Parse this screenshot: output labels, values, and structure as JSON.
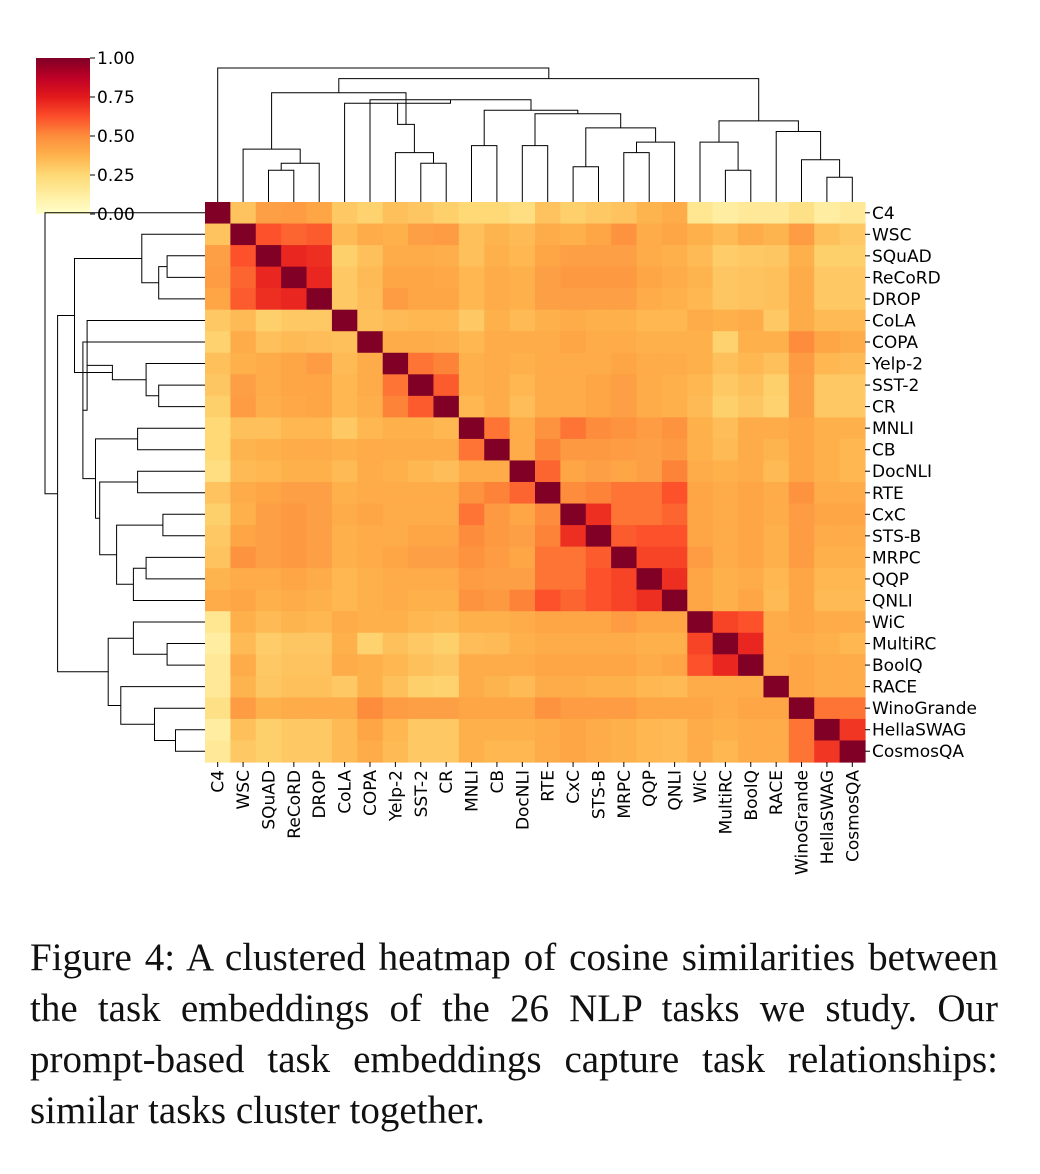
{
  "chart_data": {
    "type": "heatmap",
    "title": "",
    "tasks": [
      "C4",
      "WSC",
      "SQuAD",
      "ReCoRD",
      "DROP",
      "CoLA",
      "COPA",
      "Yelp-2",
      "SST-2",
      "CR",
      "MNLI",
      "CB",
      "DocNLI",
      "RTE",
      "CxC",
      "STS-B",
      "MRPC",
      "QQP",
      "QNLI",
      "WiC",
      "MultiRC",
      "BoolQ",
      "RACE",
      "WinoGrande",
      "HellaSWAG",
      "CosmosQA"
    ],
    "colorbar": {
      "min": 0.0,
      "max": 1.0,
      "ticks": [
        "1.00",
        "0.75",
        "0.50",
        "0.25",
        "0.00"
      ],
      "colormap": "YlOrRd"
    },
    "colormap_colors": [
      "#ffffcc",
      "#ffeda0",
      "#fed976",
      "#feb24c",
      "#fd8d3c",
      "#fc4e2a",
      "#e31a1c",
      "#bd0026",
      "#800026"
    ],
    "matrix": [
      [
        1.0,
        0.32,
        0.44,
        0.45,
        0.42,
        0.3,
        0.27,
        0.33,
        0.31,
        0.28,
        0.25,
        0.25,
        0.22,
        0.32,
        0.28,
        0.3,
        0.32,
        0.37,
        0.4,
        0.17,
        0.12,
        0.15,
        0.15,
        0.2,
        0.12,
        0.15
      ],
      [
        0.32,
        1.0,
        0.62,
        0.58,
        0.6,
        0.35,
        0.4,
        0.38,
        0.44,
        0.45,
        0.33,
        0.37,
        0.35,
        0.4,
        0.38,
        0.42,
        0.48,
        0.4,
        0.42,
        0.38,
        0.35,
        0.4,
        0.37,
        0.45,
        0.33,
        0.3
      ],
      [
        0.44,
        0.62,
        1.0,
        0.72,
        0.7,
        0.28,
        0.33,
        0.4,
        0.4,
        0.39,
        0.33,
        0.38,
        0.36,
        0.42,
        0.44,
        0.44,
        0.44,
        0.4,
        0.38,
        0.35,
        0.29,
        0.3,
        0.31,
        0.38,
        0.28,
        0.28
      ],
      [
        0.45,
        0.58,
        0.72,
        1.0,
        0.72,
        0.3,
        0.35,
        0.42,
        0.42,
        0.41,
        0.36,
        0.4,
        0.38,
        0.44,
        0.46,
        0.46,
        0.46,
        0.42,
        0.4,
        0.37,
        0.31,
        0.32,
        0.33,
        0.4,
        0.3,
        0.3
      ],
      [
        0.42,
        0.6,
        0.7,
        0.72,
        1.0,
        0.3,
        0.34,
        0.45,
        0.42,
        0.42,
        0.36,
        0.4,
        0.38,
        0.44,
        0.44,
        0.44,
        0.44,
        0.4,
        0.38,
        0.36,
        0.31,
        0.32,
        0.33,
        0.4,
        0.3,
        0.3
      ],
      [
        0.3,
        0.35,
        0.28,
        0.3,
        0.3,
        1.0,
        0.33,
        0.35,
        0.36,
        0.36,
        0.3,
        0.38,
        0.35,
        0.38,
        0.4,
        0.38,
        0.38,
        0.36,
        0.36,
        0.4,
        0.38,
        0.4,
        0.3,
        0.4,
        0.35,
        0.35
      ],
      [
        0.27,
        0.4,
        0.33,
        0.35,
        0.34,
        0.33,
        1.0,
        0.4,
        0.4,
        0.39,
        0.36,
        0.4,
        0.4,
        0.4,
        0.42,
        0.4,
        0.4,
        0.38,
        0.38,
        0.38,
        0.27,
        0.38,
        0.38,
        0.5,
        0.42,
        0.4
      ],
      [
        0.33,
        0.38,
        0.4,
        0.42,
        0.45,
        0.35,
        0.4,
        1.0,
        0.55,
        0.52,
        0.38,
        0.4,
        0.38,
        0.4,
        0.4,
        0.4,
        0.42,
        0.4,
        0.4,
        0.38,
        0.33,
        0.36,
        0.33,
        0.45,
        0.36,
        0.35
      ],
      [
        0.31,
        0.44,
        0.4,
        0.42,
        0.42,
        0.36,
        0.4,
        0.55,
        1.0,
        0.6,
        0.38,
        0.4,
        0.36,
        0.4,
        0.4,
        0.42,
        0.44,
        0.4,
        0.38,
        0.36,
        0.3,
        0.33,
        0.28,
        0.44,
        0.3,
        0.3
      ],
      [
        0.28,
        0.45,
        0.39,
        0.41,
        0.42,
        0.36,
        0.39,
        0.52,
        0.6,
        1.0,
        0.36,
        0.4,
        0.34,
        0.4,
        0.4,
        0.42,
        0.44,
        0.4,
        0.38,
        0.35,
        0.28,
        0.31,
        0.27,
        0.44,
        0.3,
        0.3
      ],
      [
        0.25,
        0.33,
        0.33,
        0.36,
        0.36,
        0.3,
        0.36,
        0.38,
        0.38,
        0.36,
        1.0,
        0.55,
        0.4,
        0.48,
        0.55,
        0.5,
        0.48,
        0.45,
        0.48,
        0.38,
        0.34,
        0.4,
        0.4,
        0.42,
        0.38,
        0.38
      ],
      [
        0.25,
        0.37,
        0.38,
        0.4,
        0.4,
        0.38,
        0.4,
        0.4,
        0.4,
        0.4,
        0.55,
        1.0,
        0.4,
        0.52,
        0.46,
        0.46,
        0.45,
        0.44,
        0.46,
        0.38,
        0.35,
        0.4,
        0.37,
        0.42,
        0.38,
        0.36
      ],
      [
        0.22,
        0.35,
        0.36,
        0.38,
        0.38,
        0.35,
        0.4,
        0.38,
        0.36,
        0.34,
        0.4,
        0.4,
        1.0,
        0.58,
        0.42,
        0.44,
        0.42,
        0.44,
        0.52,
        0.4,
        0.38,
        0.4,
        0.35,
        0.42,
        0.38,
        0.36
      ],
      [
        0.32,
        0.4,
        0.42,
        0.44,
        0.44,
        0.38,
        0.4,
        0.4,
        0.4,
        0.4,
        0.48,
        0.52,
        0.58,
        1.0,
        0.5,
        0.52,
        0.55,
        0.55,
        0.62,
        0.42,
        0.4,
        0.42,
        0.4,
        0.48,
        0.4,
        0.4
      ],
      [
        0.28,
        0.38,
        0.44,
        0.46,
        0.44,
        0.4,
        0.42,
        0.4,
        0.4,
        0.4,
        0.55,
        0.46,
        0.42,
        0.5,
        1.0,
        0.7,
        0.55,
        0.55,
        0.58,
        0.42,
        0.4,
        0.42,
        0.4,
        0.45,
        0.42,
        0.42
      ],
      [
        0.3,
        0.42,
        0.44,
        0.46,
        0.44,
        0.38,
        0.4,
        0.4,
        0.42,
        0.42,
        0.5,
        0.46,
        0.44,
        0.52,
        0.7,
        1.0,
        0.6,
        0.62,
        0.62,
        0.42,
        0.4,
        0.42,
        0.38,
        0.45,
        0.4,
        0.4
      ],
      [
        0.32,
        0.48,
        0.44,
        0.46,
        0.44,
        0.38,
        0.4,
        0.42,
        0.44,
        0.44,
        0.48,
        0.45,
        0.42,
        0.55,
        0.55,
        0.6,
        1.0,
        0.65,
        0.65,
        0.45,
        0.4,
        0.42,
        0.38,
        0.45,
        0.38,
        0.38
      ],
      [
        0.37,
        0.4,
        0.4,
        0.42,
        0.4,
        0.36,
        0.38,
        0.4,
        0.4,
        0.4,
        0.45,
        0.44,
        0.44,
        0.55,
        0.55,
        0.62,
        0.65,
        1.0,
        0.7,
        0.42,
        0.38,
        0.4,
        0.36,
        0.42,
        0.36,
        0.36
      ],
      [
        0.4,
        0.42,
        0.38,
        0.4,
        0.38,
        0.36,
        0.38,
        0.4,
        0.38,
        0.38,
        0.48,
        0.46,
        0.52,
        0.62,
        0.58,
        0.62,
        0.65,
        0.7,
        1.0,
        0.42,
        0.38,
        0.42,
        0.35,
        0.42,
        0.35,
        0.35
      ],
      [
        0.17,
        0.38,
        0.35,
        0.37,
        0.36,
        0.4,
        0.38,
        0.38,
        0.36,
        0.35,
        0.38,
        0.38,
        0.4,
        0.42,
        0.42,
        0.42,
        0.45,
        0.42,
        0.42,
        1.0,
        0.65,
        0.62,
        0.4,
        0.42,
        0.4,
        0.4
      ],
      [
        0.12,
        0.35,
        0.29,
        0.31,
        0.31,
        0.38,
        0.27,
        0.33,
        0.3,
        0.28,
        0.34,
        0.35,
        0.38,
        0.4,
        0.4,
        0.4,
        0.4,
        0.38,
        0.38,
        0.65,
        1.0,
        0.72,
        0.4,
        0.4,
        0.38,
        0.36
      ],
      [
        0.15,
        0.4,
        0.3,
        0.32,
        0.32,
        0.4,
        0.38,
        0.36,
        0.33,
        0.31,
        0.4,
        0.4,
        0.4,
        0.42,
        0.42,
        0.42,
        0.42,
        0.4,
        0.42,
        0.62,
        0.72,
        1.0,
        0.4,
        0.42,
        0.4,
        0.4
      ],
      [
        0.15,
        0.37,
        0.31,
        0.33,
        0.33,
        0.3,
        0.38,
        0.33,
        0.28,
        0.27,
        0.4,
        0.37,
        0.35,
        0.4,
        0.4,
        0.38,
        0.38,
        0.36,
        0.35,
        0.4,
        0.4,
        0.4,
        1.0,
        0.42,
        0.4,
        0.4
      ],
      [
        0.2,
        0.45,
        0.38,
        0.4,
        0.4,
        0.4,
        0.5,
        0.45,
        0.44,
        0.44,
        0.42,
        0.42,
        0.42,
        0.48,
        0.45,
        0.45,
        0.45,
        0.42,
        0.42,
        0.42,
        0.4,
        0.42,
        0.42,
        1.0,
        0.55,
        0.55
      ],
      [
        0.12,
        0.33,
        0.28,
        0.3,
        0.3,
        0.35,
        0.42,
        0.36,
        0.3,
        0.3,
        0.38,
        0.38,
        0.38,
        0.4,
        0.42,
        0.4,
        0.38,
        0.36,
        0.35,
        0.4,
        0.38,
        0.4,
        0.4,
        0.55,
        1.0,
        0.68
      ],
      [
        0.15,
        0.3,
        0.28,
        0.3,
        0.3,
        0.35,
        0.4,
        0.35,
        0.3,
        0.3,
        0.38,
        0.36,
        0.36,
        0.4,
        0.42,
        0.4,
        0.38,
        0.36,
        0.35,
        0.4,
        0.36,
        0.4,
        0.4,
        0.55,
        0.68,
        1.0
      ]
    ],
    "dendrogram_merges": [
      [
        2,
        3,
        0.45
      ],
      [
        26,
        4,
        0.55
      ],
      [
        1,
        27,
        0.75
      ],
      [
        8,
        9,
        0.55
      ],
      [
        7,
        29,
        0.7
      ],
      [
        10,
        11,
        0.8
      ],
      [
        14,
        15,
        0.5
      ],
      [
        16,
        17,
        0.7
      ],
      [
        33,
        18,
        0.85
      ],
      [
        32,
        34,
        1.05
      ],
      [
        12,
        13,
        0.8
      ],
      [
        36,
        35,
        1.25
      ],
      [
        31,
        37,
        1.3
      ],
      [
        6,
        38,
        1.45
      ],
      [
        5,
        39,
        1.4
      ],
      [
        40,
        30,
        1.1
      ],
      [
        28,
        41,
        1.55
      ],
      [
        20,
        21,
        0.45
      ],
      [
        19,
        43,
        0.85
      ],
      [
        24,
        25,
        0.35
      ],
      [
        23,
        45,
        0.6
      ],
      [
        22,
        46,
        1.0
      ],
      [
        44,
        47,
        1.15
      ],
      [
        42,
        48,
        1.75
      ],
      [
        0,
        49,
        1.9
      ]
    ]
  },
  "caption": "Figure 4:  A clustered heatmap of cosine similarities between the task embeddings of the 26 NLP tasks we study. Our prompt-based task embeddings capture task relationships: similar tasks cluster together."
}
